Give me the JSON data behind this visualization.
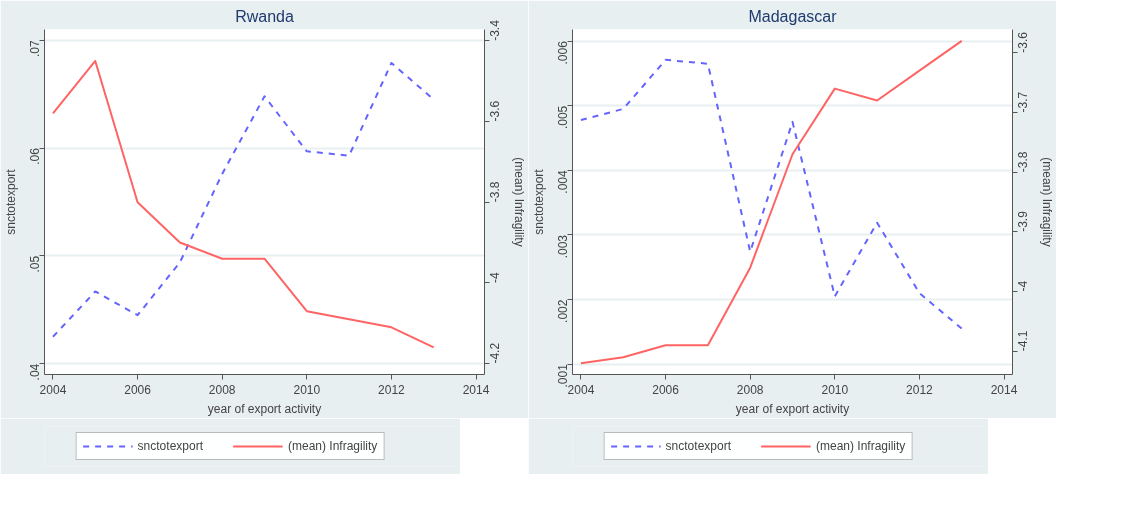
{
  "chart_data": [
    {
      "type": "line",
      "title": "Rwanda",
      "xlabel": "year of export activity",
      "ylabel": "snctotexport",
      "y2label": "(mean) Infragility",
      "x": [
        2004,
        2005,
        2006,
        2007,
        2008,
        2009,
        2010,
        2011,
        2012,
        2013
      ],
      "xlim": [
        2003.8,
        2014.2
      ],
      "xticks": [
        2004,
        2006,
        2008,
        2010,
        2012,
        2014
      ],
      "ylim": [
        0.039,
        0.071
      ],
      "yticks": [
        {
          "value": 0.04,
          "label": ".04"
        },
        {
          "value": 0.05,
          "label": ".05"
        },
        {
          "value": 0.06,
          "label": ".06"
        },
        {
          "value": 0.07,
          "label": ".07"
        }
      ],
      "y2lim": [
        -4.227,
        -3.372
      ],
      "y2ticks": [
        -4.2,
        -4,
        -3.8,
        -3.6,
        -3.4
      ],
      "grid": "y",
      "legend": "bottom",
      "series": [
        {
          "name": "snctotexport",
          "color": "#6464ff",
          "line_style": "dashed",
          "values": [
            0.0425,
            0.0467,
            0.0445,
            0.0494,
            0.0576,
            0.0648,
            0.0597,
            0.0593,
            0.0679,
            0.0645
          ]
        },
        {
          "name": "(mean) Infragility",
          "color": "#ff6464",
          "line_style": "solid",
          "axis": "y2",
          "values": [
            -3.58,
            -3.45,
            -3.8,
            -3.9,
            -3.94,
            -3.94,
            -4.07,
            -4.09,
            -4.11,
            -4.16
          ]
        }
      ]
    },
    {
      "type": "line",
      "title": "Madagascar",
      "xlabel": "year of export activity",
      "ylabel": "snctotexport",
      "y2label": "(mean) Infragility",
      "x": [
        2004,
        2005,
        2006,
        2007,
        2008,
        2009,
        2010,
        2011,
        2012,
        2013
      ],
      "xlim": [
        2003.8,
        2014.2
      ],
      "xticks": [
        2004,
        2006,
        2008,
        2010,
        2012,
        2014
      ],
      "ylim": [
        0.00084,
        0.00618
      ],
      "yticks": [
        {
          "value": 0.001,
          "label": ".001"
        },
        {
          "value": 0.002,
          "label": ".002"
        },
        {
          "value": 0.003,
          "label": ".003"
        },
        {
          "value": 0.004,
          "label": ".004"
        },
        {
          "value": 0.005,
          "label": ".005"
        },
        {
          "value": 0.006,
          "label": ".006"
        }
      ],
      "y2lim": [
        -4.139,
        -3.561
      ],
      "y2ticks": [
        -4.1,
        -4,
        -3.9,
        -3.8,
        -3.7,
        -3.6
      ],
      "grid": "y",
      "legend": "bottom",
      "series": [
        {
          "name": "snctotexport",
          "color": "#6464ff",
          "line_style": "dashed",
          "values": [
            0.00478,
            0.00495,
            0.00571,
            0.00565,
            0.00274,
            0.00475,
            0.00205,
            0.00319,
            0.0021,
            0.00155
          ]
        },
        {
          "name": "(mean) Infragility",
          "color": "#ff6464",
          "line_style": "solid",
          "axis": "y2",
          "values": [
            -4.12,
            -4.11,
            -4.09,
            -4.09,
            -3.96,
            -3.77,
            -3.66,
            -3.68,
            -3.63,
            -3.58
          ]
        }
      ]
    }
  ]
}
